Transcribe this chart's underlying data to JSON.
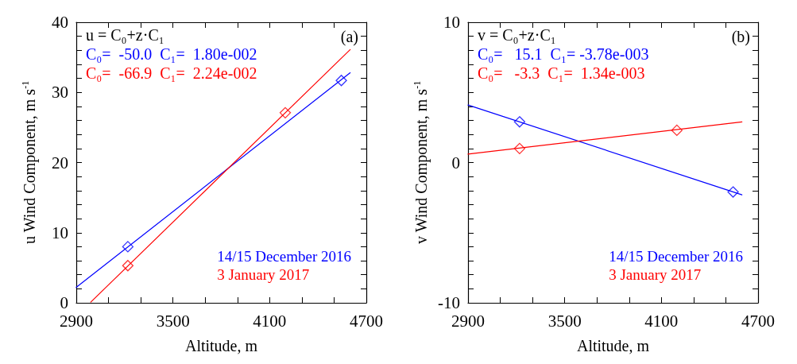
{
  "chart_data": [
    {
      "type": "scatter",
      "xlabel": "Altitude, m",
      "ylabel": "u Wind Component, m s$^{-1}$",
      "xlim": [
        2900,
        4700
      ],
      "xticks": [
        2900,
        3500,
        4100,
        4700
      ],
      "ylim": [
        0,
        40
      ],
      "yticks": [
        0,
        10,
        20,
        30,
        40
      ],
      "legend": "bottom right",
      "grid": false,
      "marker": "diamond",
      "line_style": "solid",
      "annotations": [
        "u = C₀+z·C₁",
        "C₀=  -50.0  C₁=  1.80e-002",
        "C₀=  -66.9  C₁=  2.24e-002",
        "(a)"
      ],
      "series": [
        {
          "name": "14/15 December 2016",
          "color": "#0000ff",
          "x": [
            3220,
            4545
          ],
          "values": [
            8.0,
            31.7
          ]
        },
        {
          "name": "3 January 2017",
          "color": "#ff0000",
          "x": [
            3220,
            4197
          ],
          "values": [
            5.3,
            27.1
          ]
        },
        {
          "type": "line",
          "marker": "none",
          "color": "#0000ff",
          "x": [
            2900,
            4600
          ],
          "values": [
            2.2,
            32.8
          ]
        },
        {
          "type": "line",
          "marker": "none",
          "color": "#ff0000",
          "x": [
            2990,
            4600
          ],
          "values": [
            0.1,
            36.1
          ]
        }
      ]
    },
    {
      "type": "scatter",
      "xlabel": "Altitude, m",
      "ylabel": "v Wind Component, m s$^{-1}$",
      "xlim": [
        2900,
        4700
      ],
      "xticks": [
        2900,
        3500,
        4100,
        4700
      ],
      "ylim": [
        -10,
        10
      ],
      "yticks": [
        -10,
        0,
        10
      ],
      "legend": "bottom right",
      "grid": false,
      "marker": "diamond",
      "line_style": "solid",
      "annotations": [
        "v = C₀+z·C₁",
        "C₀=   15.1  C₁= -3.78e-003",
        "C₀=   -3.3  C₁=  1.34e-003",
        "(b)"
      ],
      "series": [
        {
          "name": "14/15 December 2016",
          "color": "#0000ff",
          "x": [
            3220,
            4545
          ],
          "values": [
            2.9,
            -2.1
          ]
        },
        {
          "name": "3 January 2017",
          "color": "#ff0000",
          "x": [
            3220,
            4196
          ],
          "values": [
            1.0,
            2.3
          ]
        },
        {
          "type": "line",
          "marker": "none",
          "color": "#0000ff",
          "x": [
            2900,
            4600
          ],
          "values": [
            4.1,
            -2.3
          ]
        },
        {
          "type": "line",
          "marker": "none",
          "color": "#ff0000",
          "x": [
            2900,
            4600
          ],
          "values": [
            0.6,
            2.9
          ]
        }
      ]
    }
  ]
}
